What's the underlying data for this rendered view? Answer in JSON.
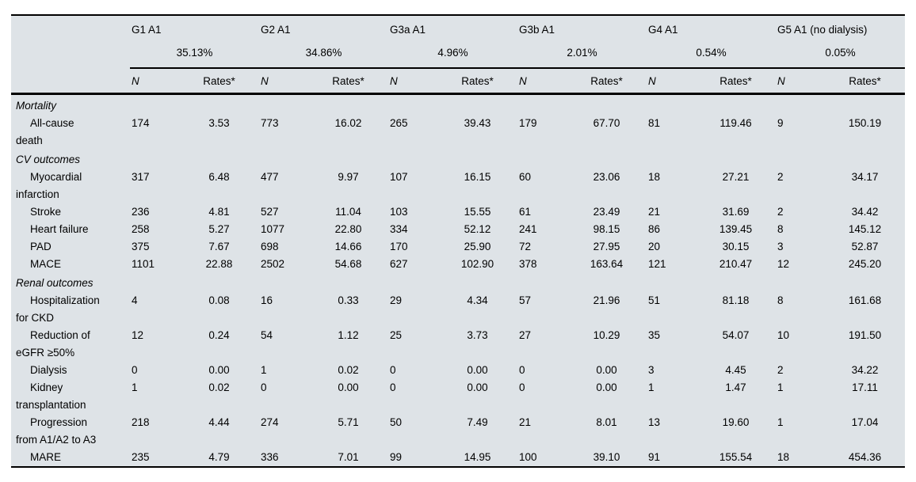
{
  "table": {
    "groups": [
      {
        "label": "G1 A1",
        "pct": "35.13%"
      },
      {
        "label": "G2 A1",
        "pct": "34.86%"
      },
      {
        "label": "G3a A1",
        "pct": "4.96%"
      },
      {
        "label": "G3b A1",
        "pct": "2.01%"
      },
      {
        "label": "G4 A1",
        "pct": "0.54%"
      },
      {
        "label": "G5 A1 (no dialysis)",
        "pct": "0.05%"
      }
    ],
    "subheaders": {
      "n": "N",
      "rates": "Rates*"
    },
    "sections": [
      {
        "title": "Mortality",
        "rows": [
          {
            "label": "All-cause\ndeath",
            "values": [
              [
                "174",
                "3.53"
              ],
              [
                "773",
                "16.02"
              ],
              [
                "265",
                "39.43"
              ],
              [
                "179",
                "67.70"
              ],
              [
                "81",
                "119.46"
              ],
              [
                "9",
                "150.19"
              ]
            ]
          }
        ]
      },
      {
        "title": "CV outcomes",
        "rows": [
          {
            "label": "Myocardial\ninfarction",
            "values": [
              [
                "317",
                "6.48"
              ],
              [
                "477",
                "9.97"
              ],
              [
                "107",
                "16.15"
              ],
              [
                "60",
                "23.06"
              ],
              [
                "18",
                "27.21"
              ],
              [
                "2",
                "34.17"
              ]
            ]
          },
          {
            "label": "Stroke",
            "values": [
              [
                "236",
                "4.81"
              ],
              [
                "527",
                "11.04"
              ],
              [
                "103",
                "15.55"
              ],
              [
                "61",
                "23.49"
              ],
              [
                "21",
                "31.69"
              ],
              [
                "2",
                "34.42"
              ]
            ]
          },
          {
            "label": "Heart failure",
            "values": [
              [
                "258",
                "5.27"
              ],
              [
                "1077",
                "22.80"
              ],
              [
                "334",
                "52.12"
              ],
              [
                "241",
                "98.15"
              ],
              [
                "86",
                "139.45"
              ],
              [
                "8",
                "145.12"
              ]
            ]
          },
          {
            "label": "PAD",
            "values": [
              [
                "375",
                "7.67"
              ],
              [
                "698",
                "14.66"
              ],
              [
                "170",
                "25.90"
              ],
              [
                "72",
                "27.95"
              ],
              [
                "20",
                "30.15"
              ],
              [
                "3",
                "52.87"
              ]
            ]
          },
          {
            "label": "MACE",
            "values": [
              [
                "1101",
                "22.88"
              ],
              [
                "2502",
                "54.68"
              ],
              [
                "627",
                "102.90"
              ],
              [
                "378",
                "163.64"
              ],
              [
                "121",
                "210.47"
              ],
              [
                "12",
                "245.20"
              ]
            ]
          }
        ]
      },
      {
        "title": "Renal outcomes",
        "rows": [
          {
            "label": "Hospitalization\nfor CKD",
            "values": [
              [
                "4",
                "0.08"
              ],
              [
                "16",
                "0.33"
              ],
              [
                "29",
                "4.34"
              ],
              [
                "57",
                "21.96"
              ],
              [
                "51",
                "81.18"
              ],
              [
                "8",
                "161.68"
              ]
            ]
          },
          {
            "label": "Reduction of\neGFR ≥50%",
            "values": [
              [
                "12",
                "0.24"
              ],
              [
                "54",
                "1.12"
              ],
              [
                "25",
                "3.73"
              ],
              [
                "27",
                "10.29"
              ],
              [
                "35",
                "54.07"
              ],
              [
                "10",
                "191.50"
              ]
            ]
          },
          {
            "label": "Dialysis",
            "values": [
              [
                "0",
                "0.00"
              ],
              [
                "1",
                "0.02"
              ],
              [
                "0",
                "0.00"
              ],
              [
                "0",
                "0.00"
              ],
              [
                "3",
                "4.45"
              ],
              [
                "2",
                "34.22"
              ]
            ]
          },
          {
            "label": "Kidney\ntransplantation",
            "values": [
              [
                "1",
                "0.02"
              ],
              [
                "0",
                "0.00"
              ],
              [
                "0",
                "0.00"
              ],
              [
                "0",
                "0.00"
              ],
              [
                "1",
                "1.47"
              ],
              [
                "1",
                "17.11"
              ]
            ]
          },
          {
            "label": "Progression\nfrom A1/A2 to A3",
            "values": [
              [
                "218",
                "4.44"
              ],
              [
                "274",
                "5.71"
              ],
              [
                "50",
                "7.49"
              ],
              [
                "21",
                "8.01"
              ],
              [
                "13",
                "19.60"
              ],
              [
                "1",
                "17.04"
              ]
            ]
          },
          {
            "label": "MARE",
            "values": [
              [
                "235",
                "4.79"
              ],
              [
                "336",
                "7.01"
              ],
              [
                "99",
                "14.95"
              ],
              [
                "100",
                "39.10"
              ],
              [
                "91",
                "155.54"
              ],
              [
                "18",
                "454.36"
              ]
            ]
          }
        ]
      }
    ],
    "colors": {
      "table_background": "#dee3e7",
      "page_background": "#ffffff",
      "rule_color": "#000000",
      "text_color": "#000000"
    }
  }
}
